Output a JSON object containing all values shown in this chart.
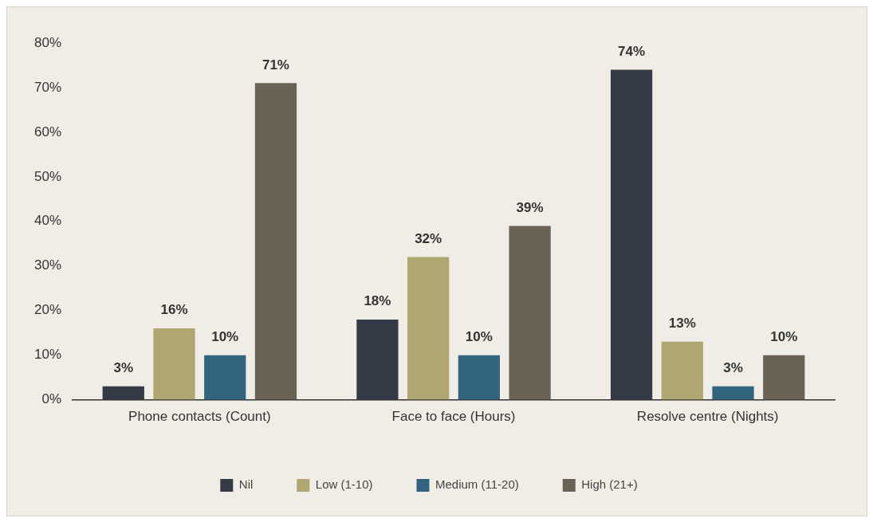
{
  "chart_data": {
    "type": "bar",
    "categories": [
      "Phone contacts (Count)",
      "Face to face (Hours)",
      "Resolve centre (Nights)"
    ],
    "series": [
      {
        "name": "Nil",
        "color": "#343b47",
        "values": [
          3,
          18,
          74
        ],
        "value_labels": [
          "3%",
          "18%",
          "74%"
        ]
      },
      {
        "name": "Low (1-10)",
        "color": "#b0a672",
        "values": [
          16,
          32,
          13
        ],
        "value_labels": [
          "16%",
          "32%",
          "13%"
        ]
      },
      {
        "name": "Medium (11-20)",
        "color": "#32647f",
        "values": [
          10,
          10,
          3
        ],
        "value_labels": [
          "10%",
          "10%",
          "3%"
        ]
      },
      {
        "name": "High (21+)",
        "color": "#6b6256",
        "values": [
          71,
          39,
          10
        ],
        "value_labels": [
          "71%",
          "39%",
          "10%"
        ]
      }
    ],
    "ylim": [
      0,
      80
    ],
    "yticks": [
      {
        "value": 0,
        "label": "0%"
      },
      {
        "value": 10,
        "label": "10%"
      },
      {
        "value": 20,
        "label": "20%"
      },
      {
        "value": 30,
        "label": "30%"
      },
      {
        "value": 40,
        "label": "40%"
      },
      {
        "value": 50,
        "label": "50%"
      },
      {
        "value": 60,
        "label": "60%"
      },
      {
        "value": 70,
        "label": "70%"
      },
      {
        "value": 80,
        "label": "80%"
      }
    ],
    "grid": false,
    "legend": "bottom"
  }
}
